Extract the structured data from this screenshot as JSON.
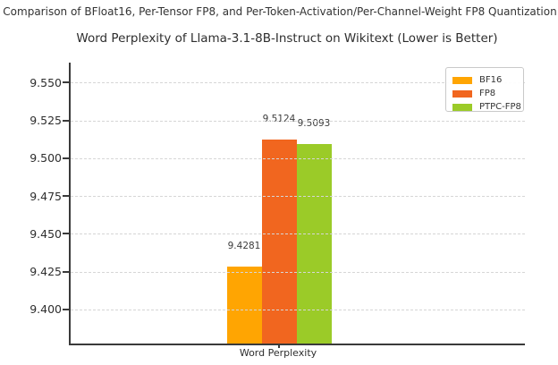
{
  "suptitle": "Comparison of BFloat16, Per-Tensor FP8, and Per-Token-Activation/Per-Channel-Weight FP8 Quantization",
  "chart_data": {
    "type": "bar",
    "title": "Word Perplexity of Llama-3.1-8B-Instruct on Wikitext (Lower is Better)",
    "xlabel": "Word Perplexity",
    "ylabel": "",
    "categories": [
      "Word Perplexity"
    ],
    "series": [
      {
        "name": "BF16",
        "color": "#ffa502",
        "values": [
          9.4281
        ],
        "label": "9.4281"
      },
      {
        "name": "FP8",
        "color": "#f1661f",
        "values": [
          9.5124
        ],
        "label": "9.5124"
      },
      {
        "name": "PTPC-FP8",
        "color": "#9bcb28",
        "values": [
          9.5093
        ],
        "label": "9.5093"
      }
    ],
    "yticks": [
      9.4,
      9.425,
      9.45,
      9.475,
      9.5,
      9.525,
      9.55
    ],
    "ytick_labels": [
      "9.400",
      "9.425",
      "9.450",
      "9.475",
      "9.500",
      "9.525",
      "9.550"
    ],
    "ylim": [
      9.3775,
      9.5632
    ],
    "grid": true,
    "grid_style": "dashed",
    "legend_position": "upper right",
    "lower_is_better": true
  },
  "colors": {
    "spine": "#3a3a3a",
    "gridline": "#d6d6d6",
    "background": "#ffffff",
    "text": "#2e2e2e"
  }
}
